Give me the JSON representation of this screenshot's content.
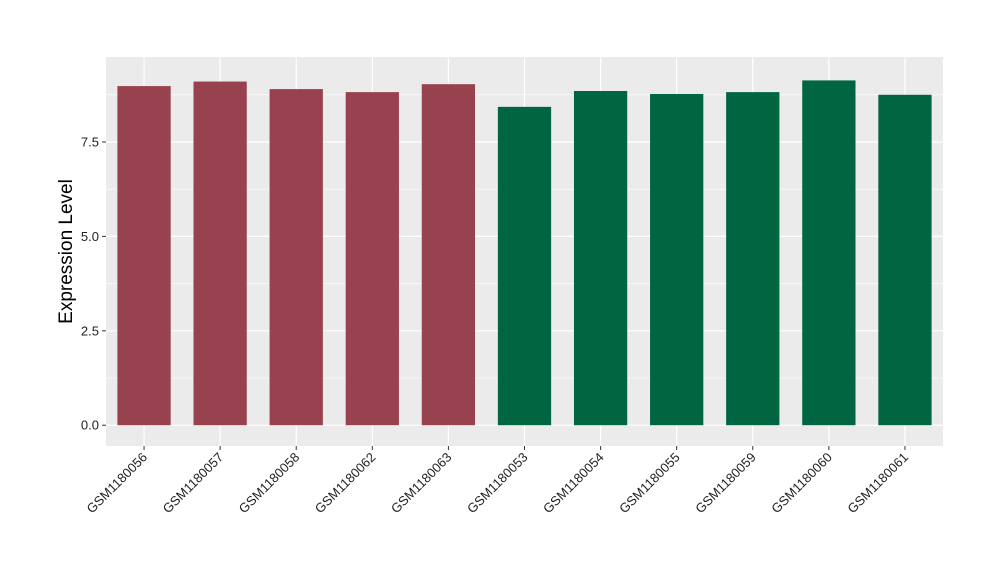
{
  "chart_data": {
    "type": "bar",
    "ylabel": "Expression Level",
    "xlabel": "",
    "ylim": [
      -0.55,
      9.75
    ],
    "yticks": [
      0.0,
      2.5,
      5.0,
      7.5
    ],
    "ytick_labels": [
      "0.0",
      "2.5",
      "5.0",
      "7.5"
    ],
    "grid": true,
    "legend": "none",
    "categories": [
      "GSM1180056",
      "GSM1180057",
      "GSM1180058",
      "GSM1180062",
      "GSM1180063",
      "GSM1180053",
      "GSM1180054",
      "GSM1180055",
      "GSM1180059",
      "GSM1180060",
      "GSM1180061"
    ],
    "values": [
      8.98,
      9.1,
      8.9,
      8.82,
      9.03,
      8.43,
      8.85,
      8.77,
      8.82,
      9.13,
      8.75
    ],
    "bar_colors": [
      "#99424F",
      "#99424F",
      "#99424F",
      "#99424F",
      "#99424F",
      "#006642",
      "#006642",
      "#006642",
      "#006642",
      "#006642",
      "#006642"
    ],
    "panel_background": "#EBEBEB",
    "grid_color": "#FFFFFF"
  }
}
